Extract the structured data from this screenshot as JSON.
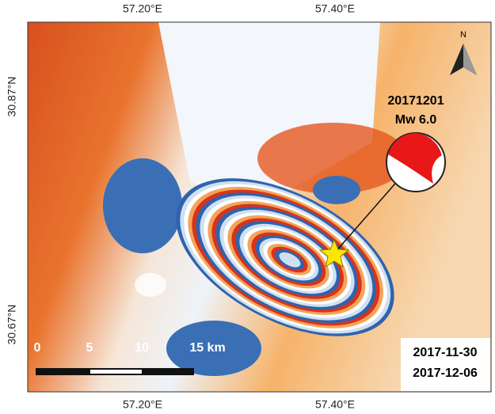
{
  "map": {
    "axes": {
      "top": [
        "57.20°E",
        "57.40°E"
      ],
      "bottom": [
        "57.20°E",
        "57.40°E"
      ],
      "left": [
        "30.87°N",
        "30.67°N"
      ]
    },
    "event": {
      "date": "20171201",
      "magnitude": "Mw 6.0"
    },
    "north": "N",
    "scale_bar": [
      "0",
      "5",
      "10",
      "15 km"
    ],
    "dates": [
      "2017-11-30",
      "2017-12-06"
    ]
  }
}
